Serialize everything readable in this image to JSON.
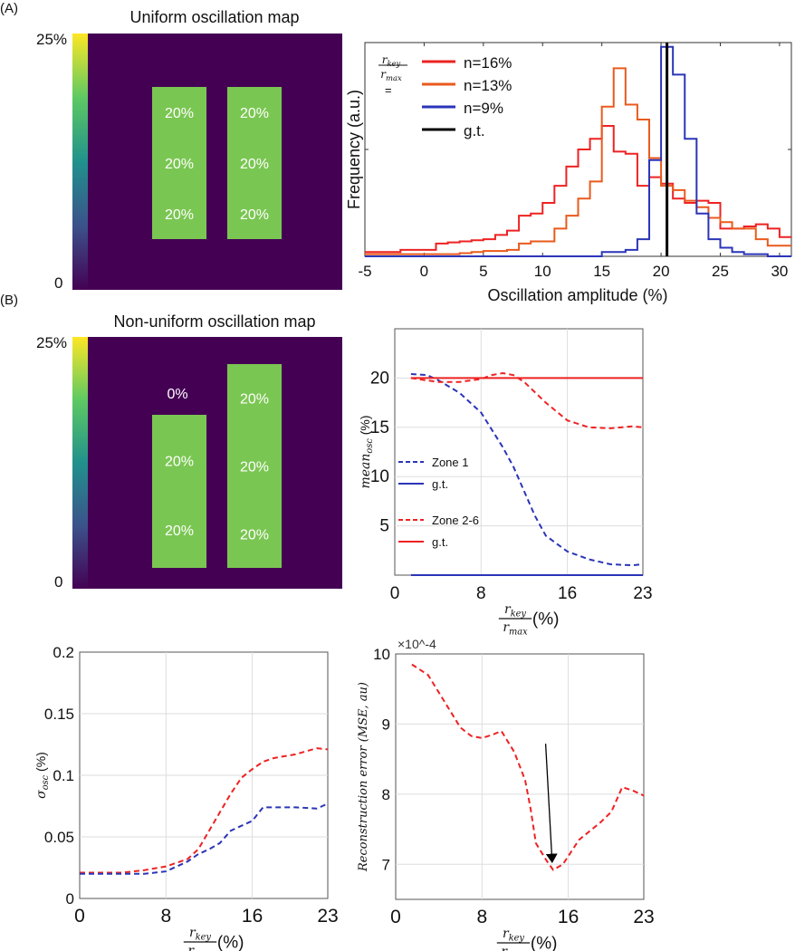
{
  "panel_labels": {
    "a": "(A)",
    "b": "(B)"
  },
  "colors": {
    "map_bg": "#440154",
    "zone": "#7ac652",
    "red": "#ee2222",
    "orange": "#ea5a1c",
    "blue": "#2b35b8",
    "black": "#000000"
  },
  "chart_data": [
    {
      "id": "uniform-map",
      "type": "heatmap",
      "title": "Uniform oscillation map",
      "colorbar": {
        "colormap": "viridis",
        "max_label": "25%",
        "min_label": "0",
        "range": [
          0,
          25
        ]
      },
      "zones": [
        {
          "value": 20,
          "labels": [
            "20%",
            "20%",
            "20%"
          ]
        },
        {
          "value": 20,
          "labels": [
            "20%",
            "20%",
            "20%"
          ]
        }
      ]
    },
    {
      "id": "histogram",
      "type": "line",
      "style": "step",
      "xlabel": "Oscillation amplitude (%)",
      "ylabel": "Frequency (a.u.)",
      "xlim": [
        -5,
        31
      ],
      "ylim": [
        0,
        1
      ],
      "xticks": [
        -5,
        0,
        5,
        10,
        15,
        20,
        25,
        30
      ],
      "grid": false,
      "legend_title": {
        "num": "r",
        "num_sub": "key",
        "den": "r",
        "den_sub": "max",
        "eq": "="
      },
      "legend_placement": "top-left",
      "bin_start": -5,
      "bin_width": 1,
      "series": [
        {
          "name": "n=16%",
          "color": "#ee2222",
          "values": [
            0.02,
            0.02,
            0.02,
            0.03,
            0.03,
            0.03,
            0.06,
            0.065,
            0.07,
            0.075,
            0.08,
            0.1,
            0.12,
            0.19,
            0.2,
            0.25,
            0.33,
            0.42,
            0.5,
            0.55,
            0.61,
            0.49,
            0.48,
            0.33,
            0.37,
            0.34,
            0.27,
            0.25,
            0.26,
            0.25,
            0.13,
            0.13,
            0.14,
            0.15,
            0.13,
            0.09
          ]
        },
        {
          "name": "n=13%",
          "color": "#ea5a1c",
          "values": [
            0.01,
            0.01,
            0.01,
            0.01,
            0.01,
            0.01,
            0.01,
            0.01,
            0.015,
            0.02,
            0.025,
            0.025,
            0.03,
            0.06,
            0.07,
            0.07,
            0.13,
            0.19,
            0.27,
            0.35,
            0.7,
            0.88,
            0.71,
            0.64,
            0.46,
            0.33,
            0.31,
            0.26,
            0.23,
            0.18,
            0.16,
            0.13,
            0.13,
            0.08,
            0.05,
            0.05
          ]
        },
        {
          "name": "n=9%",
          "color": "#2b35b8",
          "values": [
            0,
            0,
            0,
            0,
            0,
            0,
            0,
            0,
            0,
            0,
            0,
            0,
            0,
            0,
            0,
            0,
            0,
            0,
            0,
            0,
            0.02,
            0.02,
            0.03,
            0.08,
            0.45,
            0.98,
            0.85,
            0.55,
            0.2,
            0.08,
            0.04,
            0.02,
            0.01,
            0.01,
            0,
            0
          ]
        },
        {
          "name": "g.t.",
          "color": "#000000",
          "vline": 20.5
        }
      ]
    },
    {
      "id": "nonuniform-map",
      "type": "heatmap",
      "title": "Non-uniform oscillation map",
      "colorbar": {
        "colormap": "viridis",
        "max_label": "25%",
        "min_label": "0",
        "range": [
          0,
          25
        ]
      },
      "zones": [
        {
          "value": 20,
          "top_label": "0%",
          "labels": [
            "20%",
            "20%"
          ]
        },
        {
          "value": 20,
          "labels": [
            "20%",
            "20%",
            "20%"
          ]
        }
      ]
    },
    {
      "id": "mean-osc",
      "type": "line",
      "ylabel": {
        "main": "mean",
        "sub": "osc",
        "suffix": " (%)"
      },
      "xlabel": {
        "num": "r",
        "num_sub": "key",
        "den": "r",
        "den_sub": "max",
        "suffix": "(%)"
      },
      "xlim": [
        0,
        23
      ],
      "ylim": [
        0,
        25
      ],
      "xticks": [
        0,
        8,
        16,
        23
      ],
      "yticks": [
        5,
        10,
        15,
        20
      ],
      "grid": true,
      "legend_placement": "left",
      "series": [
        {
          "name": "Zone 1",
          "color": "#2b35b8",
          "dash": true,
          "x": [
            1.5,
            3,
            4,
            6,
            8,
            10,
            11,
            12,
            13,
            14,
            16,
            18,
            20,
            22,
            23
          ],
          "y": [
            20.4,
            20.3,
            19.8,
            18.5,
            16.5,
            13,
            11,
            8.5,
            6,
            4,
            2.4,
            1.6,
            1.1,
            1,
            1.1
          ]
        },
        {
          "name": "g.t.",
          "color": "#2b35b8",
          "dash": false,
          "x": [
            1.5,
            23
          ],
          "y": [
            0,
            0
          ]
        },
        {
          "name": "Zone 2-6",
          "color": "#ee2222",
          "dash": true,
          "x": [
            1.5,
            4,
            6,
            8,
            9,
            10,
            11,
            12,
            14,
            16,
            18,
            20,
            22,
            23
          ],
          "y": [
            20,
            19.6,
            19.6,
            19.9,
            20.3,
            20.5,
            20.3,
            19.6,
            17.5,
            15.7,
            15,
            14.9,
            15.1,
            15
          ]
        },
        {
          "name": "g.t.",
          "color": "#ee2222",
          "dash": false,
          "x": [
            1.5,
            23
          ],
          "y": [
            20,
            20
          ]
        }
      ]
    },
    {
      "id": "sigma-osc",
      "type": "line",
      "ylabel": {
        "main": "σ",
        "sub": "osc",
        "suffix": " (%)"
      },
      "xlabel": {
        "num": "r",
        "num_sub": "key",
        "den": "r",
        "den_sub": "max",
        "suffix": "(%)"
      },
      "xlim": [
        0,
        23
      ],
      "ylim": [
        0,
        0.2
      ],
      "xticks": [
        0,
        8,
        16,
        23
      ],
      "yticks": [
        0,
        0.05,
        0.1,
        0.15,
        0.2
      ],
      "grid": true,
      "series": [
        {
          "color": "#ee2222",
          "dash": true,
          "x": [
            0,
            4,
            6,
            8,
            10,
            11,
            12,
            13,
            14,
            15,
            16,
            17,
            18,
            20,
            22,
            23
          ],
          "y": [
            0.021,
            0.021,
            0.023,
            0.026,
            0.032,
            0.04,
            0.055,
            0.07,
            0.085,
            0.098,
            0.105,
            0.111,
            0.114,
            0.117,
            0.122,
            0.121
          ]
        },
        {
          "color": "#2b35b8",
          "dash": true,
          "x": [
            0,
            6,
            8,
            10,
            11,
            12,
            13,
            14,
            16,
            17,
            20,
            22,
            23
          ],
          "y": [
            0.02,
            0.02,
            0.022,
            0.03,
            0.036,
            0.04,
            0.045,
            0.055,
            0.063,
            0.074,
            0.074,
            0.073,
            0.077
          ]
        }
      ]
    },
    {
      "id": "recon-error",
      "type": "line",
      "ylabel": {
        "main": "Reconstruction error (MSE, au)"
      },
      "y_exponent": "×10^-4",
      "xlabel": {
        "num": "r",
        "num_sub": "key",
        "den": "r",
        "den_sub": "max",
        "suffix": "(%)"
      },
      "xlim": [
        0,
        23
      ],
      "ylim": [
        6.5,
        10
      ],
      "xticks": [
        0,
        8,
        16,
        23
      ],
      "yticks": [
        7,
        8,
        9,
        10
      ],
      "grid": true,
      "series": [
        {
          "color": "#ee2222",
          "dash": true,
          "x": [
            1.5,
            3,
            4,
            5,
            6,
            7,
            8,
            9,
            9.8,
            11,
            12,
            12.5,
            13,
            14,
            14.6,
            15.5,
            17,
            19,
            20,
            21,
            22,
            23
          ],
          "y": [
            9.85,
            9.7,
            9.45,
            9.2,
            8.95,
            8.83,
            8.8,
            8.85,
            8.9,
            8.6,
            8.2,
            7.8,
            7.3,
            7.05,
            6.92,
            7.0,
            7.35,
            7.6,
            7.75,
            8.1,
            8.05,
            7.98
          ]
        }
      ],
      "arrow": {
        "from": [
          13.9,
          8.72
        ],
        "to": [
          14.5,
          7.05
        ]
      }
    }
  ]
}
